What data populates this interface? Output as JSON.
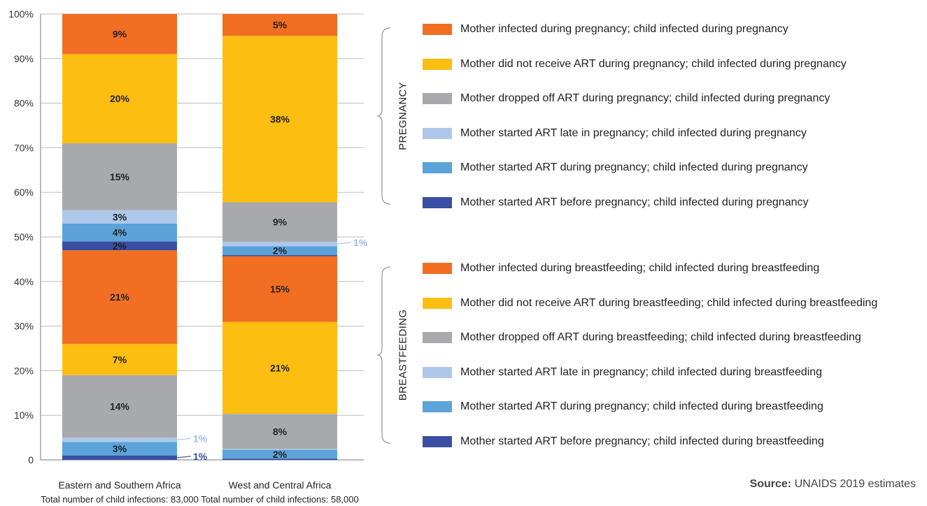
{
  "chart_data": {
    "type": "bar",
    "stacked": true,
    "categories": [
      "Eastern and Southern Africa",
      "West and Central Africa"
    ],
    "category_sublabels": [
      "Total number of child infections: 83,000",
      "Total number of child infections: 58,000"
    ],
    "y_ticks": [
      "0",
      "10%",
      "20%",
      "30%",
      "40%",
      "50%",
      "60%",
      "70%",
      "80%",
      "90%",
      "100%"
    ],
    "ylim": [
      0,
      100
    ],
    "grid": true,
    "series": [
      {
        "name": "Mother started ART before pregnancy; child infected during breastfeeding",
        "color": "#3A4FA3",
        "values": [
          1,
          0.3
        ],
        "labels": [
          "1%",
          ""
        ]
      },
      {
        "name": "Mother started ART during pregnancy; child infected during breastfeeding",
        "color": "#5BA3D9",
        "values": [
          3,
          2
        ],
        "labels": [
          "3%",
          "2%"
        ]
      },
      {
        "name": "Mother started ART late in pregnancy; child infected during breastfeeding",
        "color": "#AEC7EA",
        "values": [
          1,
          0.2
        ],
        "labels": [
          "1%",
          ""
        ]
      },
      {
        "name": "Mother dropped off ART during breastfeeding; child infected during breastfeeding",
        "color": "#A7A9AC",
        "values": [
          14,
          8
        ],
        "labels": [
          "14%",
          "8%"
        ]
      },
      {
        "name": "Mother did not receive ART during breastfeeding; child infected during breastfeeding",
        "color": "#FDBE12",
        "values": [
          7,
          21
        ],
        "labels": [
          "7%",
          "21%"
        ]
      },
      {
        "name": "Mother infected during breastfeeding; child infected during breastfeeding",
        "color": "#F26E22",
        "values": [
          21,
          15
        ],
        "labels": [
          "21%",
          "15%"
        ]
      },
      {
        "name": "Mother started ART before pregnancy; child infected during pregnancy",
        "color": "#3A4FA3",
        "values": [
          2,
          0.3
        ],
        "labels": [
          "2%",
          ""
        ]
      },
      {
        "name": "Mother started ART during pregnancy; child infected during pregnancy",
        "color": "#5BA3D9",
        "values": [
          4,
          2
        ],
        "labels": [
          "4%",
          "2%"
        ]
      },
      {
        "name": "Mother started ART late in pregnancy; child infected during pregnancy",
        "color": "#AEC7EA",
        "values": [
          3,
          1
        ],
        "labels": [
          "3%",
          "1%"
        ]
      },
      {
        "name": "Mother dropped off ART during pregnancy; child infected during pregnancy",
        "color": "#A7A9AC",
        "values": [
          15,
          9
        ],
        "labels": [
          "15%",
          "9%"
        ]
      },
      {
        "name": "Mother did not receive ART during pregnancy; child infected during pregnancy",
        "color": "#FDBE12",
        "values": [
          20,
          38
        ],
        "labels": [
          "20%",
          "38%"
        ]
      },
      {
        "name": "Mother infected during pregnancy; child infected during pregnancy",
        "color": "#F26E22",
        "values": [
          9,
          5
        ],
        "labels": [
          "9%",
          "5%"
        ]
      }
    ],
    "legend_groups": [
      {
        "label": "PREGNANCY",
        "items": [
          {
            "name": "Mother infected during pregnancy; child infected during pregnancy",
            "color": "#F26E22"
          },
          {
            "name": "Mother did not receive ART during pregnancy; child infected during pregnancy",
            "color": "#FDBE12"
          },
          {
            "name": "Mother dropped off ART during pregnancy; child infected during pregnancy",
            "color": "#A7A9AC"
          },
          {
            "name": "Mother started ART late in pregnancy; child infected during pregnancy",
            "color": "#AEC7EA"
          },
          {
            "name": "Mother started ART during pregnancy; child infected during pregnancy",
            "color": "#5BA3D9"
          },
          {
            "name": "Mother started ART before pregnancy; child infected during pregnancy",
            "color": "#3A4FA3"
          }
        ]
      },
      {
        "label": "BREASTFEEDING",
        "items": [
          {
            "name": "Mother infected during breastfeeding; child infected during breastfeeding",
            "color": "#F26E22"
          },
          {
            "name": "Mother did not receive ART during breastfeeding; child infected during breastfeeding",
            "color": "#FDBE12"
          },
          {
            "name": "Mother dropped off ART during breastfeeding; child infected during breastfeeding",
            "color": "#A7A9AC"
          },
          {
            "name": "Mother started ART late in pregnancy; child infected during breastfeeding",
            "color": "#AEC7EA"
          },
          {
            "name": "Mother started ART during pregnancy; child infected during breastfeeding",
            "color": "#5BA3D9"
          },
          {
            "name": "Mother started ART before pregnancy; child infected during breastfeeding",
            "color": "#3A4FA3"
          }
        ]
      }
    ],
    "legend_placement": "right",
    "source": {
      "prefix": "Source:",
      "text": "UNAIDS 2019 estimates"
    }
  }
}
